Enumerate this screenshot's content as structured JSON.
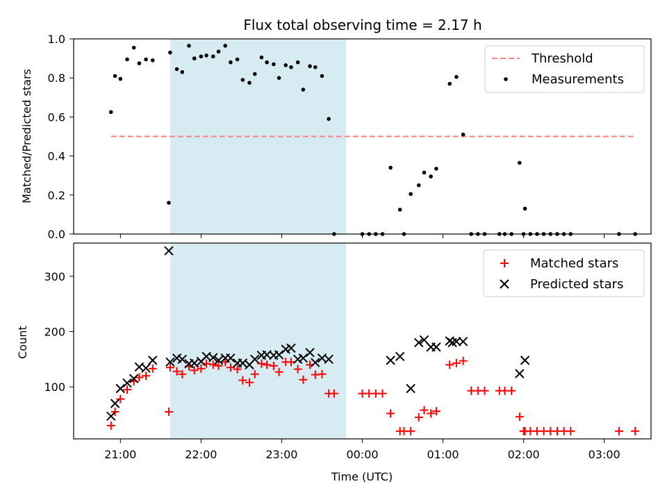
{
  "title": "Flux total observing time = 2.17 h",
  "colors": {
    "threshold": "#ff7f7f",
    "matched": "#ff0000",
    "predicted": "#000000",
    "measurements": "#000000",
    "shade": "#add8e6"
  },
  "chart_data": [
    {
      "type": "scatter",
      "ylabel": "Matched/Predicted stars",
      "ylim": [
        0,
        1.0
      ],
      "xlim_hours": [
        20.42,
        27.58
      ],
      "yticks": [
        0.0,
        0.2,
        0.4,
        0.6,
        0.8,
        1.0
      ],
      "ytick_labels": [
        "0.0",
        "0.2",
        "0.4",
        "0.6",
        "0.8",
        "1.0"
      ],
      "shaded_span": [
        "21:37",
        "23:48"
      ],
      "legend": {
        "position": "top-right",
        "entries": [
          "Threshold",
          "Measurements"
        ]
      },
      "threshold": {
        "name": "Threshold",
        "value": 0.5,
        "x_range": [
          "20:53",
          "27:23"
        ]
      },
      "series": [
        {
          "name": "Measurements",
          "points": [
            [
              "20:53",
              0.625
            ],
            [
              "20:56",
              0.81
            ],
            [
              "21:00",
              0.795
            ],
            [
              "21:05",
              0.895
            ],
            [
              "21:10",
              0.955
            ],
            [
              "21:14",
              0.875
            ],
            [
              "21:19",
              0.895
            ],
            [
              "21:24",
              0.89
            ],
            [
              "21:36",
              0.16
            ],
            [
              "21:37",
              0.93
            ],
            [
              "21:42",
              0.845
            ],
            [
              "21:46",
              0.83
            ],
            [
              "21:51",
              0.965
            ],
            [
              "21:55",
              0.9
            ],
            [
              "22:00",
              0.91
            ],
            [
              "22:04",
              0.915
            ],
            [
              "22:09",
              0.91
            ],
            [
              "22:13",
              0.935
            ],
            [
              "22:18",
              0.965
            ],
            [
              "22:22",
              0.88
            ],
            [
              "22:27",
              0.895
            ],
            [
              "22:31",
              0.79
            ],
            [
              "22:36",
              0.775
            ],
            [
              "22:40",
              0.82
            ],
            [
              "22:45",
              0.905
            ],
            [
              "22:49",
              0.88
            ],
            [
              "22:54",
              0.87
            ],
            [
              "22:58",
              0.8
            ],
            [
              "23:03",
              0.865
            ],
            [
              "23:07",
              0.855
            ],
            [
              "23:12",
              0.88
            ],
            [
              "23:16",
              0.74
            ],
            [
              "23:21",
              0.86
            ],
            [
              "23:25",
              0.855
            ],
            [
              "23:30",
              0.81
            ],
            [
              "23:35",
              0.59
            ],
            [
              "23:39",
              0.0
            ],
            [
              "24:00",
              0.0
            ],
            [
              "24:05",
              0.0
            ],
            [
              "24:10",
              0.0
            ],
            [
              "24:15",
              0.0
            ],
            [
              "24:21",
              0.34
            ],
            [
              "24:28",
              0.125
            ],
            [
              "24:31",
              0.0
            ],
            [
              "24:36",
              0.205
            ],
            [
              "24:42",
              0.25
            ],
            [
              "24:46",
              0.315
            ],
            [
              "24:51",
              0.295
            ],
            [
              "24:55",
              0.335
            ],
            [
              "25:05",
              0.77
            ],
            [
              "25:10",
              0.805
            ],
            [
              "25:15",
              0.51
            ],
            [
              "25:21",
              0.0
            ],
            [
              "25:26",
              0.0
            ],
            [
              "25:31",
              0.0
            ],
            [
              "25:42",
              0.0
            ],
            [
              "25:46",
              0.0
            ],
            [
              "25:51",
              0.0
            ],
            [
              "25:57",
              0.365
            ],
            [
              "26:00",
              0.0
            ],
            [
              "26:01",
              0.13
            ],
            [
              "26:05",
              0.0
            ],
            [
              "26:10",
              0.0
            ],
            [
              "26:15",
              0.0
            ],
            [
              "26:20",
              0.0
            ],
            [
              "26:25",
              0.0
            ],
            [
              "26:30",
              0.0
            ],
            [
              "26:35",
              0.0
            ],
            [
              "27:11",
              0.0
            ],
            [
              "27:23",
              0.0
            ]
          ]
        }
      ]
    },
    {
      "type": "scatter",
      "xlabel": "Time (UTC)",
      "ylabel": "Count",
      "ylim": [
        6,
        360
      ],
      "xlim_hours": [
        20.42,
        27.58
      ],
      "yticks": [
        100,
        200,
        300
      ],
      "ytick_labels": [
        "100",
        "200",
        "300"
      ],
      "xticks_hours": [
        21,
        22,
        23,
        24,
        25,
        26,
        27
      ],
      "xtick_labels": [
        "21:00",
        "22:00",
        "23:00",
        "00:00",
        "01:00",
        "02:00",
        "03:00"
      ],
      "shaded_span": [
        "21:37",
        "23:48"
      ],
      "legend": {
        "position": "top-right",
        "entries": [
          "Matched stars",
          "Predicted stars"
        ]
      },
      "series": [
        {
          "name": "Matched stars",
          "marker": "plus",
          "points": [
            [
              "20:53",
              30
            ],
            [
              "20:56",
              55
            ],
            [
              "21:00",
              78
            ],
            [
              "21:05",
              95
            ],
            [
              "21:10",
              110
            ],
            [
              "21:14",
              117
            ],
            [
              "21:19",
              120
            ],
            [
              "21:24",
              133
            ],
            [
              "21:36",
              55
            ],
            [
              "21:37",
              135
            ],
            [
              "21:42",
              128
            ],
            [
              "21:46",
              123
            ],
            [
              "21:51",
              137
            ],
            [
              "21:55",
              130
            ],
            [
              "22:00",
              133
            ],
            [
              "22:04",
              142
            ],
            [
              "22:09",
              140
            ],
            [
              "22:13",
              138
            ],
            [
              "22:18",
              145
            ],
            [
              "22:22",
              135
            ],
            [
              "22:27",
              132
            ],
            [
              "22:31",
              112
            ],
            [
              "22:36",
              108
            ],
            [
              "22:40",
              123
            ],
            [
              "22:45",
              142
            ],
            [
              "22:49",
              140
            ],
            [
              "22:54",
              138
            ],
            [
              "22:58",
              127
            ],
            [
              "23:03",
              145
            ],
            [
              "23:07",
              145
            ],
            [
              "23:12",
              132
            ],
            [
              "23:16",
              113
            ],
            [
              "23:21",
              140
            ],
            [
              "23:25",
              122
            ],
            [
              "23:30",
              123
            ],
            [
              "23:35",
              88
            ],
            [
              "23:39",
              88
            ],
            [
              "24:00",
              88
            ],
            [
              "24:05",
              88
            ],
            [
              "24:10",
              88
            ],
            [
              "24:15",
              88
            ],
            [
              "24:21",
              52
            ],
            [
              "24:28",
              20
            ],
            [
              "24:31",
              20
            ],
            [
              "24:36",
              20
            ],
            [
              "24:42",
              45
            ],
            [
              "24:46",
              58
            ],
            [
              "24:51",
              52
            ],
            [
              "24:55",
              56
            ],
            [
              "25:05",
              140
            ],
            [
              "25:10",
              143
            ],
            [
              "25:15",
              147
            ],
            [
              "25:21",
              93
            ],
            [
              "25:26",
              93
            ],
            [
              "25:31",
              93
            ],
            [
              "25:42",
              93
            ],
            [
              "25:46",
              93
            ],
            [
              "25:51",
              93
            ],
            [
              "25:57",
              46
            ],
            [
              "26:00",
              20
            ],
            [
              "26:01",
              20
            ],
            [
              "26:05",
              20
            ],
            [
              "26:10",
              20
            ],
            [
              "26:15",
              20
            ],
            [
              "26:20",
              20
            ],
            [
              "26:25",
              20
            ],
            [
              "26:30",
              20
            ],
            [
              "26:35",
              20
            ],
            [
              "27:11",
              20
            ],
            [
              "27:23",
              20
            ]
          ]
        },
        {
          "name": "Predicted stars",
          "marker": "x",
          "points": [
            [
              "20:53",
              47
            ],
            [
              "20:56",
              70
            ],
            [
              "21:00",
              97
            ],
            [
              "21:05",
              107
            ],
            [
              "21:10",
              115
            ],
            [
              "21:14",
              136
            ],
            [
              "21:19",
              134
            ],
            [
              "21:24",
              148
            ],
            [
              "21:36",
              346
            ],
            [
              "21:37",
              145
            ],
            [
              "21:42",
              152
            ],
            [
              "21:46",
              150
            ],
            [
              "21:51",
              142
            ],
            [
              "21:55",
              143
            ],
            [
              "22:00",
              146
            ],
            [
              "22:04",
              155
            ],
            [
              "22:09",
              153
            ],
            [
              "22:13",
              148
            ],
            [
              "22:18",
              152
            ],
            [
              "22:22",
              152
            ],
            [
              "22:27",
              143
            ],
            [
              "22:31",
              143
            ],
            [
              "22:36",
              140
            ],
            [
              "22:40",
              150
            ],
            [
              "22:45",
              157
            ],
            [
              "22:49",
              158
            ],
            [
              "22:54",
              157
            ],
            [
              "22:58",
              158
            ],
            [
              "23:03",
              168
            ],
            [
              "23:07",
              170
            ],
            [
              "23:12",
              150
            ],
            [
              "23:16",
              152
            ],
            [
              "23:21",
              162
            ],
            [
              "23:25",
              144
            ],
            [
              "23:30",
              152
            ],
            [
              "23:35",
              150
            ],
            [
              "24:21",
              148
            ],
            [
              "24:28",
              155
            ],
            [
              "24:36",
              97
            ],
            [
              "24:42",
              180
            ],
            [
              "24:46",
              185
            ],
            [
              "24:51",
              172
            ],
            [
              "24:55",
              172
            ],
            [
              "25:05",
              183
            ],
            [
              "25:07",
              180
            ],
            [
              "25:10",
              182
            ],
            [
              "25:15",
              182
            ],
            [
              "25:57",
              124
            ],
            [
              "26:01",
              148
            ]
          ]
        }
      ]
    }
  ]
}
